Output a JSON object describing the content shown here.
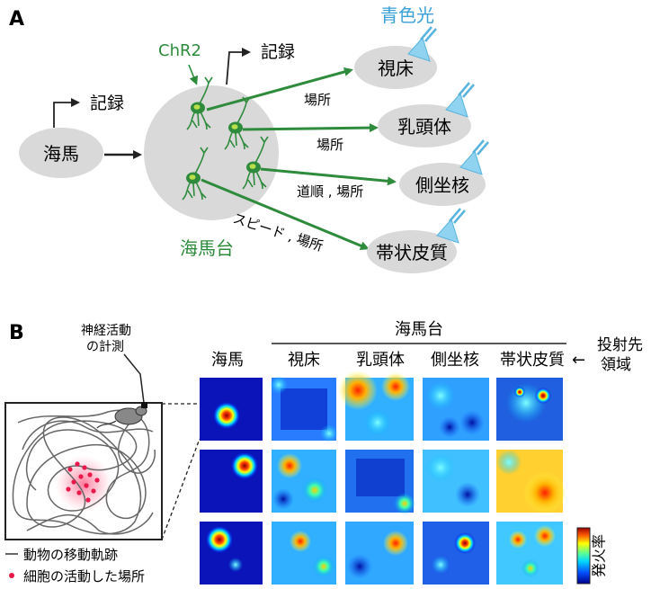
{
  "panel_a": {
    "label": "A",
    "light_label": "青色光",
    "chr2_label": "ChR2",
    "record_label_left": "記録",
    "record_label_top": "記録",
    "hippocampus": "海馬",
    "subiculum": "海馬台",
    "targets": [
      "視床",
      "乳頭体",
      "側坐核",
      "帯状皮質"
    ],
    "edge_labels": [
      "場所",
      "場所",
      "道順 , 場所",
      "スピード , 場所"
    ]
  },
  "panel_b": {
    "label": "B",
    "measure_label_line1": "神経活動",
    "measure_label_line2": "の計測",
    "subiculum_header": "海馬台",
    "col_hippocampus": "海馬",
    "col_targets": [
      "視床",
      "乳頭体",
      "側坐核",
      "帯状皮質"
    ],
    "projection_line1": "投射先",
    "projection_line2": "領域",
    "arrow_glyph": "←",
    "colorbar_label": "発火率",
    "legend_path": "動物の移動軌跡",
    "legend_cell": "細胞の活動した場所",
    "colors": {
      "trajectory": "#666666",
      "cell_dot": "#e8194a",
      "green": "#2e8b3c",
      "light": "#3aa0d8"
    }
  }
}
